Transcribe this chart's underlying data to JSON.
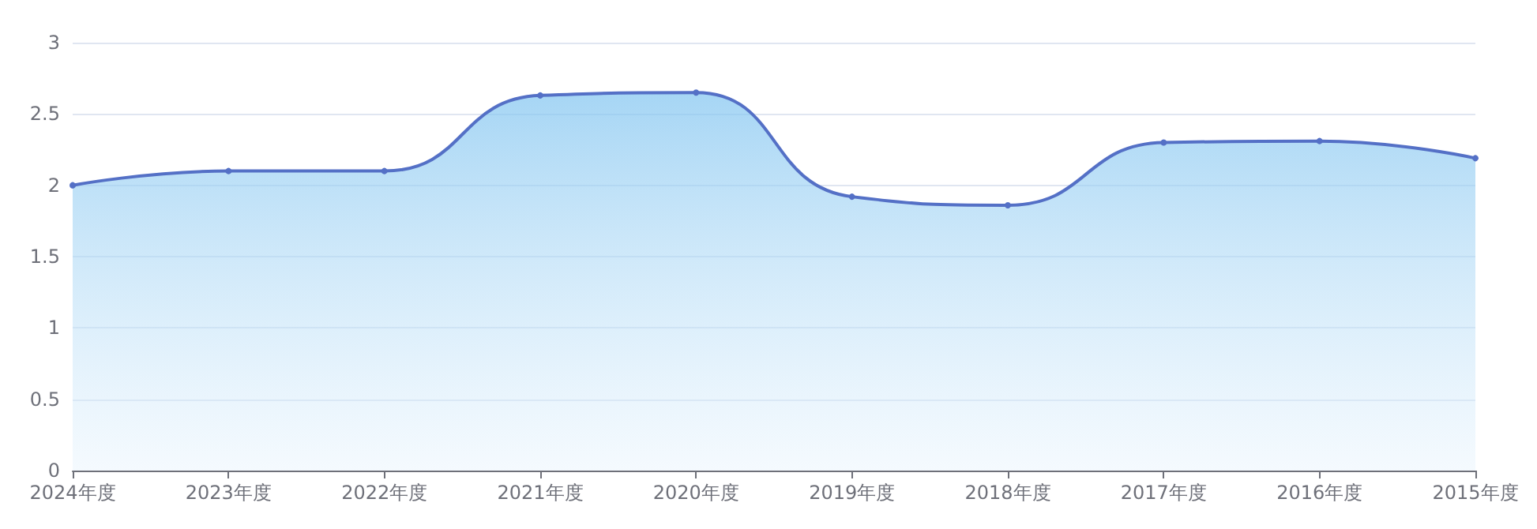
{
  "chart_data": {
    "type": "area",
    "categories": [
      "2024年度",
      "2023年度",
      "2022年度",
      "2021年度",
      "2020年度",
      "2019年度",
      "2018年度",
      "2017年度",
      "2016年度",
      "2015年度"
    ],
    "series": [
      {
        "color": "#5470c6",
        "values": [
          2.0,
          2.1,
          2.1,
          2.63,
          2.65,
          1.92,
          1.86,
          2.3,
          2.31,
          2.19
        ]
      }
    ],
    "ylim": [
      0,
      3
    ],
    "yticks": [
      0,
      0.5,
      1,
      1.5,
      2,
      2.5,
      3
    ],
    "grid": "y",
    "marker": "circle"
  }
}
